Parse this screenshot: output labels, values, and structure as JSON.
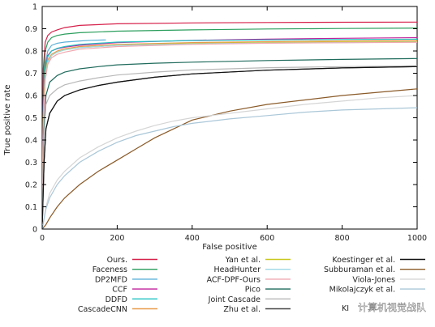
{
  "chart_data": {
    "type": "line",
    "title": "",
    "xlabel": "False positive",
    "ylabel": "True positive rate",
    "xlim": [
      0,
      1000
    ],
    "ylim": [
      0,
      1
    ],
    "xticks": [
      0,
      200,
      400,
      600,
      800,
      1000
    ],
    "yticks": [
      0,
      0.1,
      0.2,
      0.3,
      0.4,
      0.5,
      0.6,
      0.7,
      0.8,
      0.9,
      1
    ],
    "grid": false,
    "legend_position": "bottom",
    "series": [
      {
        "name": "Ours.",
        "color": "#d6204a",
        "x": [
          0,
          3,
          8,
          15,
          25,
          40,
          60,
          100,
          200,
          400,
          600,
          800,
          1000
        ],
        "y": [
          0,
          0.72,
          0.84,
          0.87,
          0.885,
          0.895,
          0.905,
          0.915,
          0.922,
          0.926,
          0.928,
          0.929,
          0.93
        ]
      },
      {
        "name": "Faceness",
        "color": "#2a9e5c",
        "x": [
          0,
          3,
          8,
          15,
          25,
          40,
          60,
          100,
          200,
          400,
          600,
          800,
          1000
        ],
        "y": [
          0,
          0.62,
          0.8,
          0.84,
          0.86,
          0.87,
          0.876,
          0.882,
          0.889,
          0.895,
          0.899,
          0.901,
          0.903
        ]
      },
      {
        "name": "DP2MFD",
        "color": "#5bb0d8",
        "x": [
          0,
          3,
          8,
          15,
          25,
          40,
          60,
          100,
          130,
          170
        ],
        "y": [
          0,
          0.58,
          0.74,
          0.8,
          0.825,
          0.835,
          0.84,
          0.845,
          0.848,
          0.85
        ]
      },
      {
        "name": "CCF",
        "color": "#c0229b",
        "x": [
          0,
          3,
          8,
          15,
          25,
          40,
          60,
          100,
          200,
          400,
          600,
          800,
          1000
        ],
        "y": [
          0,
          0.58,
          0.73,
          0.78,
          0.8,
          0.81,
          0.817,
          0.826,
          0.838,
          0.848,
          0.853,
          0.857,
          0.86
        ]
      },
      {
        "name": "DDFD",
        "color": "#22c2c2",
        "x": [
          0,
          3,
          8,
          15,
          25,
          40,
          60,
          100,
          200,
          400,
          600,
          800,
          1000
        ],
        "y": [
          0,
          0.55,
          0.72,
          0.775,
          0.8,
          0.812,
          0.82,
          0.83,
          0.84,
          0.847,
          0.85,
          0.852,
          0.853
        ]
      },
      {
        "name": "CascadeCNN",
        "color": "#e89a4a",
        "x": [
          0,
          3,
          8,
          15,
          25,
          40,
          60,
          100,
          200,
          400,
          600,
          800,
          1000
        ],
        "y": [
          0,
          0.52,
          0.7,
          0.76,
          0.785,
          0.8,
          0.81,
          0.82,
          0.83,
          0.838,
          0.842,
          0.845,
          0.847
        ]
      },
      {
        "name": "Yan et al.",
        "color": "#c8c81e",
        "x": [
          0,
          3,
          8,
          15,
          25,
          40,
          60,
          100,
          200,
          400,
          600,
          800,
          1000
        ],
        "y": [
          0,
          0.5,
          0.69,
          0.75,
          0.78,
          0.795,
          0.805,
          0.815,
          0.826,
          0.834,
          0.838,
          0.84,
          0.842
        ]
      },
      {
        "name": "HeadHunter",
        "color": "#9ed8e8",
        "x": [
          0,
          3,
          8,
          15,
          25,
          40,
          60,
          100,
          200,
          400,
          600,
          800,
          1000
        ],
        "y": [
          0,
          0.48,
          0.68,
          0.75,
          0.78,
          0.795,
          0.805,
          0.815,
          0.825,
          0.832,
          0.836,
          0.838,
          0.84
        ]
      },
      {
        "name": "ACF-DPF-Ours",
        "color": "#f0a8b0",
        "x": [
          0,
          3,
          8,
          15,
          25,
          40,
          60,
          100,
          200,
          400,
          600,
          800,
          1000
        ],
        "y": [
          0,
          0.46,
          0.67,
          0.74,
          0.77,
          0.785,
          0.795,
          0.808,
          0.82,
          0.83,
          0.835,
          0.837,
          0.839
        ]
      },
      {
        "name": "Pico",
        "color": "#1f6b5c",
        "x": [
          0,
          5,
          10,
          20,
          40,
          60,
          100,
          150,
          200,
          300,
          400,
          600,
          800,
          1000
        ],
        "y": [
          0,
          0.45,
          0.6,
          0.66,
          0.69,
          0.705,
          0.72,
          0.73,
          0.738,
          0.745,
          0.75,
          0.757,
          0.762,
          0.766
        ]
      },
      {
        "name": "Joint Cascade",
        "color": "#b8b8b8",
        "x": [
          0,
          5,
          10,
          20,
          40,
          60,
          100,
          150,
          200,
          300,
          400,
          600,
          800,
          1000
        ],
        "y": [
          0,
          0.42,
          0.56,
          0.6,
          0.63,
          0.648,
          0.665,
          0.68,
          0.692,
          0.705,
          0.715,
          0.725,
          0.73,
          0.733
        ]
      },
      {
        "name": "Zhu et al.",
        "color": "#444444",
        "x": [
          0,
          5,
          10,
          20,
          40,
          60,
          100,
          150,
          200,
          300,
          400,
          600,
          800,
          1000
        ],
        "y": [
          0,
          0.3,
          0.45,
          0.52,
          0.575,
          0.6,
          0.625,
          0.645,
          0.66,
          0.682,
          0.697,
          0.714,
          0.724,
          0.73
        ]
      },
      {
        "name": "Koestinger et al.",
        "color": "#111111",
        "x": [
          0,
          5,
          10,
          20,
          40,
          60,
          100,
          150,
          200,
          300,
          400,
          600,
          800,
          1000
        ],
        "y": [
          0,
          0.3,
          0.45,
          0.52,
          0.575,
          0.6,
          0.625,
          0.645,
          0.66,
          0.682,
          0.697,
          0.714,
          0.724,
          0.73
        ]
      },
      {
        "name": "Subburaman et al.",
        "color": "#8a5a28",
        "x": [
          0,
          10,
          20,
          40,
          60,
          100,
          150,
          200,
          250,
          300,
          350,
          400,
          500,
          600,
          700,
          800,
          900,
          1000
        ],
        "y": [
          0,
          0.02,
          0.05,
          0.1,
          0.14,
          0.2,
          0.26,
          0.31,
          0.36,
          0.41,
          0.45,
          0.49,
          0.53,
          0.56,
          0.58,
          0.6,
          0.615,
          0.63
        ]
      },
      {
        "name": "Viola-Jones",
        "color": "#d5d5d5",
        "x": [
          0,
          10,
          20,
          40,
          60,
          100,
          150,
          200,
          250,
          300,
          350,
          400,
          500,
          600,
          700,
          800,
          900,
          1000
        ],
        "y": [
          0,
          0.1,
          0.16,
          0.22,
          0.26,
          0.32,
          0.37,
          0.41,
          0.44,
          0.465,
          0.485,
          0.5,
          0.52,
          0.54,
          0.56,
          0.575,
          0.59,
          0.6
        ]
      },
      {
        "name": "Mikolajczyk et al.",
        "color": "#aac7d8",
        "x": [
          0,
          10,
          20,
          40,
          60,
          100,
          150,
          200,
          250,
          300,
          350,
          400,
          500,
          600,
          700,
          800,
          900,
          1000
        ],
        "y": [
          0,
          0.09,
          0.14,
          0.2,
          0.24,
          0.3,
          0.35,
          0.39,
          0.42,
          0.44,
          0.46,
          0.475,
          0.495,
          0.51,
          0.525,
          0.535,
          0.54,
          0.545
        ]
      }
    ]
  },
  "legend_truncated": {
    "fragment": "KI"
  },
  "watermark": {
    "text": "计算机视觉战队"
  }
}
